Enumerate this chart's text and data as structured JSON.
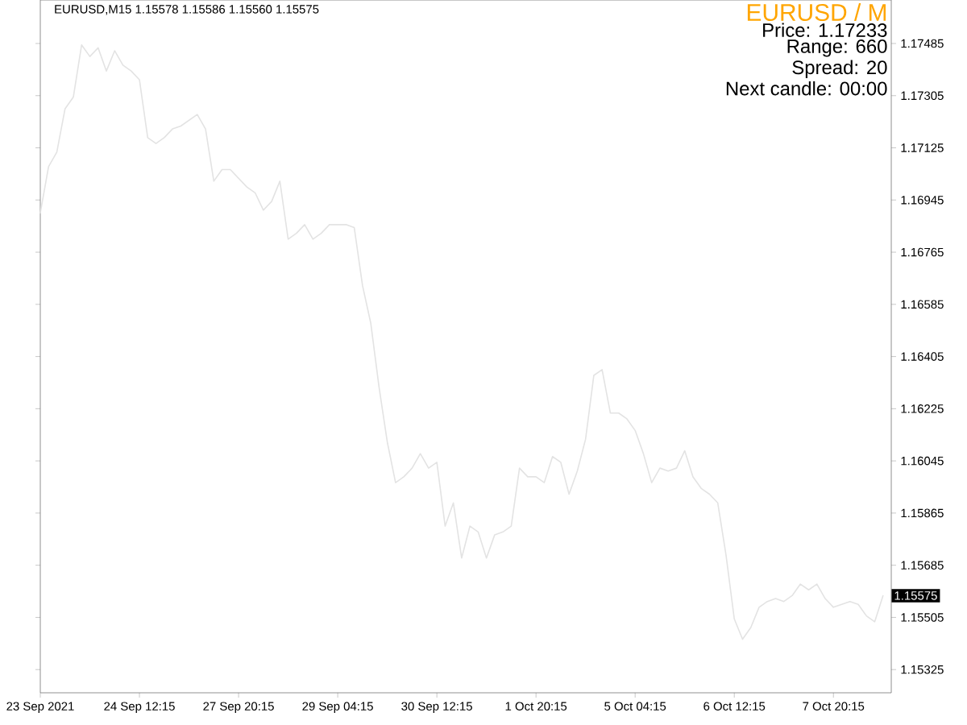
{
  "chart_data": {
    "type": "line",
    "title": "EURUSD,M15  1.15578 1.15586 1.15560 1.15575",
    "annotations": [
      "EURUSD  /  M",
      "Price: 1.17233",
      "Range: 660",
      "Spread: 20",
      "Next candle: 00:00",
      "1.15575"
    ],
    "categories": [
      "23 Sep 2021",
      null,
      null,
      null,
      null,
      null,
      null,
      null,
      null,
      null,
      null,
      null,
      "24 Sep 12:15",
      null,
      null,
      null,
      null,
      null,
      null,
      null,
      null,
      null,
      null,
      null,
      "27 Sep 20:15",
      null,
      null,
      null,
      null,
      null,
      null,
      null,
      null,
      null,
      null,
      null,
      "29 Sep 04:15",
      null,
      null,
      null,
      null,
      null,
      null,
      null,
      null,
      null,
      null,
      null,
      "30 Sep 12:15",
      null,
      null,
      null,
      null,
      null,
      null,
      null,
      null,
      null,
      null,
      null,
      "1 Oct 20:15",
      null,
      null,
      null,
      null,
      null,
      null,
      null,
      null,
      null,
      null,
      null,
      "5 Oct 04:15",
      null,
      null,
      null,
      null,
      null,
      null,
      null,
      null,
      null,
      null,
      null,
      "6 Oct 12:15",
      null,
      null,
      null,
      null,
      null,
      null,
      null,
      null,
      null,
      null,
      null,
      "7 Oct 20:15",
      null,
      null,
      null,
      null,
      null,
      null
    ],
    "series": [
      {
        "color": "#e3e3e3",
        "values": [
          1.169,
          1.1706,
          1.1711,
          1.1726,
          1.173,
          1.1748,
          1.1744,
          1.1747,
          1.1739,
          1.1746,
          1.1741,
          1.1739,
          1.1736,
          1.1716,
          1.1714,
          1.1716,
          1.1719,
          1.172,
          1.1722,
          1.1724,
          1.1719,
          1.1701,
          1.1705,
          1.1705,
          1.1702,
          1.1699,
          1.1697,
          1.1691,
          1.1694,
          1.1701,
          1.1681,
          1.1683,
          1.1686,
          1.1681,
          1.1683,
          1.1686,
          1.1686,
          1.1686,
          1.1685,
          1.1665,
          1.1652,
          1.163,
          1.1611,
          1.1597,
          1.1599,
          1.1602,
          1.1607,
          1.1602,
          1.1604,
          1.1582,
          1.159,
          1.1571,
          1.1582,
          1.158,
          1.1571,
          1.1579,
          1.158,
          1.1582,
          1.1602,
          1.1599,
          1.1599,
          1.1597,
          1.1606,
          1.1604,
          1.1593,
          1.1601,
          1.1612,
          1.1634,
          1.1636,
          1.1621,
          1.1621,
          1.1619,
          1.1615,
          1.1607,
          1.1597,
          1.1602,
          1.1601,
          1.1602,
          1.1608,
          1.1599,
          1.1595,
          1.1593,
          1.159,
          1.1572,
          1.155,
          1.1543,
          1.1547,
          1.1554,
          1.1556,
          1.1557,
          1.1556,
          1.1558,
          1.1562,
          1.156,
          1.1562,
          1.1557,
          1.1554,
          1.1555,
          1.1556,
          1.1555,
          1.1551,
          1.1549,
          1.1558
        ]
      }
    ],
    "ylim": [
      1.15245,
      1.17635
    ],
    "yticks": [
      1.17485,
      1.17305,
      1.17125,
      1.16945,
      1.16765,
      1.16585,
      1.16405,
      1.16225,
      1.16045,
      1.15865,
      1.15685,
      1.15505,
      1.15325
    ],
    "marker": "none",
    "line_style": "solid",
    "grid": false
  }
}
